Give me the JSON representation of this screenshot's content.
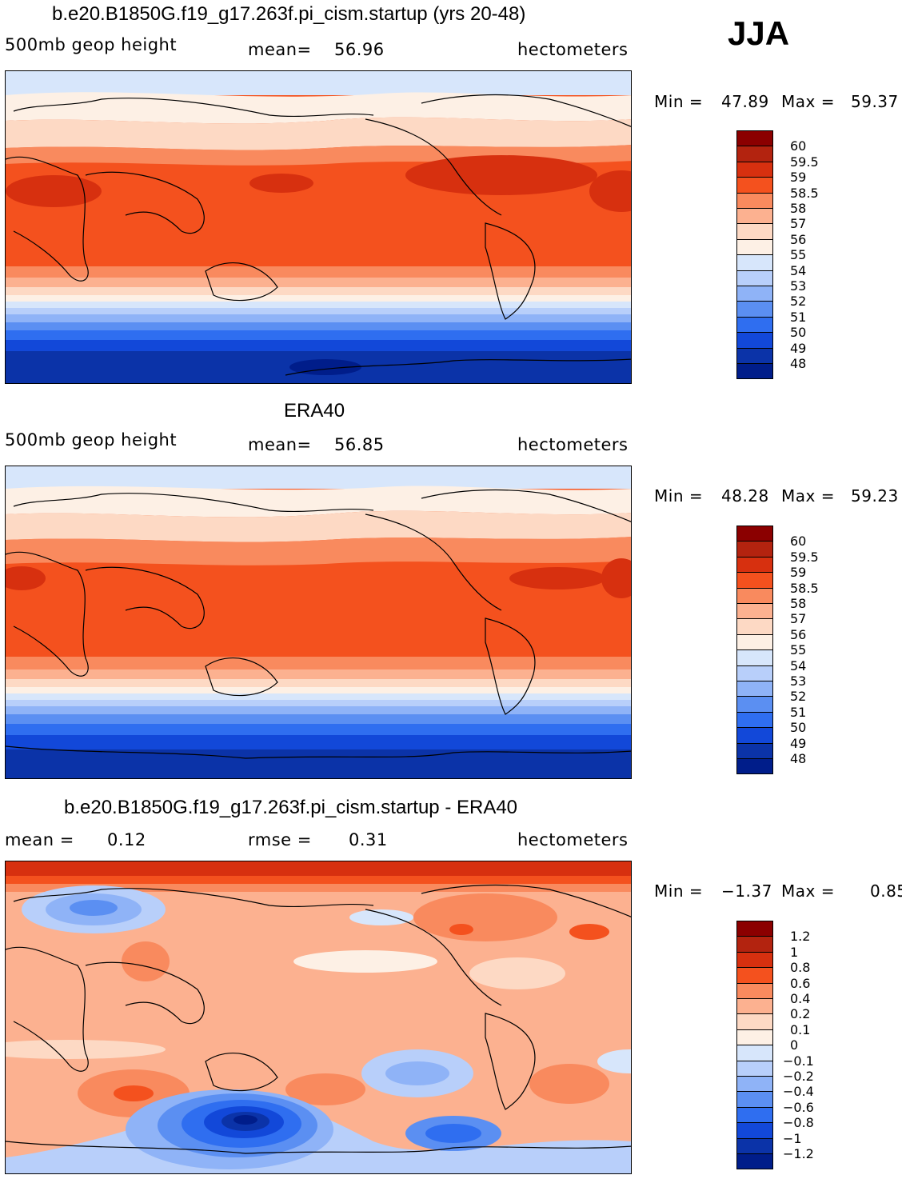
{
  "season": "JJA",
  "panels": [
    {
      "id": "model",
      "title": "b.e20.B1850G.f19_g17.263f.pi_cism.startup (yrs 20-48)",
      "left_label": "500mb geop height",
      "stat_label": "mean=",
      "stat_value": "56.96",
      "stat2_label": "",
      "stat2_value": "",
      "units": "hectometers",
      "min_label": "Min =",
      "min_value": "47.89",
      "max_label": "Max =",
      "max_value": "59.37",
      "colorbar_labels": [
        "60",
        "59.5",
        "59",
        "58.5",
        "58",
        "57",
        "56",
        "55",
        "54",
        "53",
        "52",
        "51",
        "50",
        "49",
        "48"
      ],
      "colors": [
        "#8b0000",
        "#b3230f",
        "#d7300f",
        "#f4511e",
        "#f98a5e",
        "#fcb190",
        "#fdd9c4",
        "#fdf0e5",
        "#d7e6fb",
        "#b8cffa",
        "#8fb3f7",
        "#5b8ff2",
        "#2f6ef0",
        "#1248d9",
        "#0b33a8",
        "#001d8a"
      ]
    },
    {
      "id": "obs",
      "title": "ERA40",
      "left_label": "500mb geop height",
      "stat_label": "mean=",
      "stat_value": "56.85",
      "stat2_label": "",
      "stat2_value": "",
      "units": "hectometers",
      "min_label": "Min =",
      "min_value": "48.28",
      "max_label": "Max =",
      "max_value": "59.23",
      "colorbar_labels": [
        "60",
        "59.5",
        "59",
        "58.5",
        "58",
        "57",
        "56",
        "55",
        "54",
        "53",
        "52",
        "51",
        "50",
        "49",
        "48"
      ],
      "colors": [
        "#8b0000",
        "#b3230f",
        "#d7300f",
        "#f4511e",
        "#f98a5e",
        "#fcb190",
        "#fdd9c4",
        "#fdf0e5",
        "#d7e6fb",
        "#b8cffa",
        "#8fb3f7",
        "#5b8ff2",
        "#2f6ef0",
        "#1248d9",
        "#0b33a8",
        "#001d8a"
      ]
    },
    {
      "id": "diff",
      "title": "b.e20.B1850G.f19_g17.263f.pi_cism.startup - ERA40",
      "left_label": "mean =",
      "stat_label": "",
      "stat_value": "0.12",
      "stat2_label": "rmse =",
      "stat2_value": "0.31",
      "units": "hectometers",
      "min_label": "Min =",
      "min_value": "−1.37",
      "max_label": "Max =",
      "max_value": "0.85",
      "colorbar_labels": [
        "1.2",
        "1",
        "0.8",
        "0.6",
        "0.4",
        "0.2",
        "0.1",
        "0",
        "−0.1",
        "−0.2",
        "−0.4",
        "−0.6",
        "−0.8",
        "−1",
        "−1.2"
      ],
      "colors": [
        "#8b0000",
        "#b3230f",
        "#d7300f",
        "#f4511e",
        "#f98a5e",
        "#fcb190",
        "#fdd9c4",
        "#fdf0e5",
        "#d7e6fb",
        "#b8cffa",
        "#8fb3f7",
        "#5b8ff2",
        "#2f6ef0",
        "#1248d9",
        "#0b33a8",
        "#001d8a"
      ]
    }
  ]
}
